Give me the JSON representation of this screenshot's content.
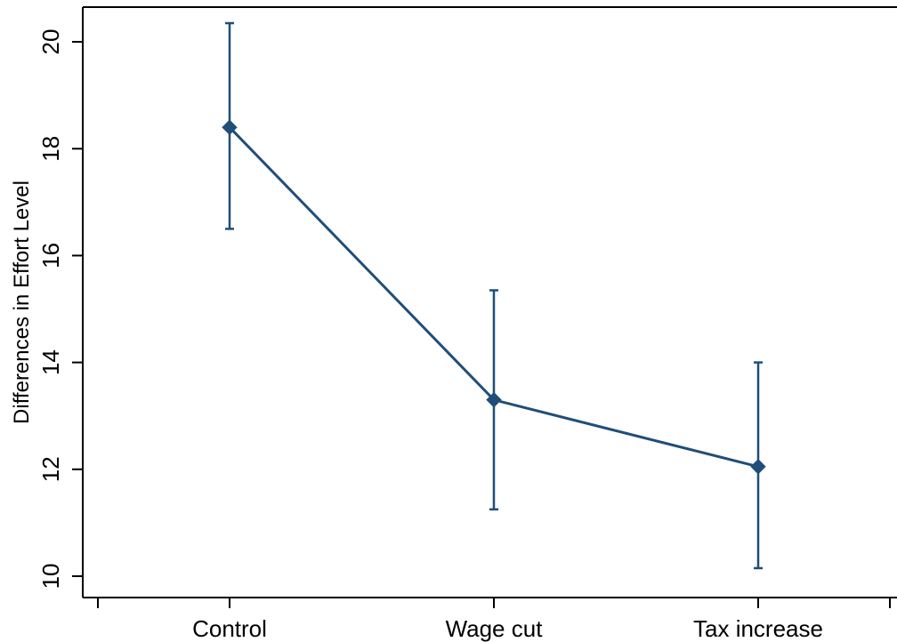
{
  "chart_data": {
    "type": "line",
    "title": "",
    "xlabel": "",
    "ylabel": "Differences in Effort Level",
    "categories": [
      "Control",
      "Wage cut",
      "Tax increase"
    ],
    "series": [
      {
        "values": [
          18.4,
          13.3,
          12.05
        ],
        "error_low": [
          16.5,
          11.25,
          10.15
        ],
        "error_high": [
          20.35,
          15.35,
          14.0
        ],
        "marker": "diamond",
        "color": "#1f4e79"
      }
    ],
    "ylim": [
      9.6,
      20.65
    ],
    "yticks": [
      10,
      12,
      14,
      16,
      18,
      20
    ],
    "grid": false,
    "legend": "none"
  }
}
